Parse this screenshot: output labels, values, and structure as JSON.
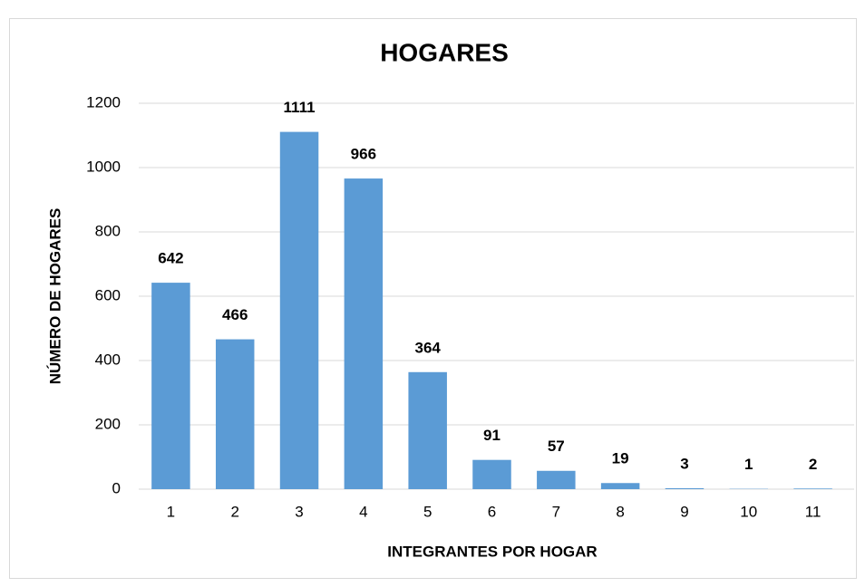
{
  "chart_data": {
    "type": "bar",
    "title": "HOGARES",
    "x_label": "INTEGRANTES POR HOGAR",
    "y_label": "NÚMERO DE HOGARES",
    "categories": [
      "1",
      "2",
      "3",
      "4",
      "5",
      "6",
      "7",
      "8",
      "9",
      "10",
      "11"
    ],
    "values": [
      642,
      466,
      1111,
      966,
      364,
      91,
      57,
      19,
      3,
      1,
      2
    ],
    "color": "#5b9bd5",
    "ylim": [
      0,
      1200
    ],
    "yticks": [
      0,
      200,
      400,
      600,
      800,
      1000,
      1200
    ],
    "grid": true
  }
}
